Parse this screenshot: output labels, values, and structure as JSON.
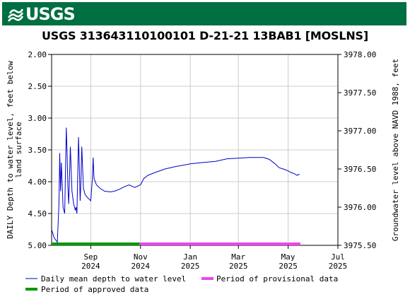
{
  "header": {
    "logo_text": "USGS",
    "banner_color": "#006f41"
  },
  "chart_data": {
    "type": "line",
    "title": "USGS 313643110100101 D-21-21 13BAB1 [MOSLNS]",
    "ylabel_left": [
      "DAILY Depth to water level, feet below",
      "land surface"
    ],
    "ylabel_right": "Groundwater level above NAVD 1988, feet",
    "y_left": {
      "min": 2.0,
      "max": 5.0,
      "inverted": true,
      "ticks": [
        "2.00",
        "2.50",
        "3.00",
        "3.50",
        "4.00",
        "4.50",
        "5.00"
      ]
    },
    "y_right": {
      "min": 3975.5,
      "max": 3978.0,
      "ticks": [
        "3978.00",
        "3977.50",
        "3977.00",
        "3976.50",
        "3976.00",
        "3975.50"
      ]
    },
    "x_range": [
      "2024-07-15",
      "2025-07-01"
    ],
    "x_ticks": [
      {
        "date": "2024-09-01",
        "month": "Sep",
        "year": "2024"
      },
      {
        "date": "2024-11-01",
        "month": "Nov",
        "year": "2024"
      },
      {
        "date": "2025-01-01",
        "month": "Jan",
        "year": "2025"
      },
      {
        "date": "2025-03-01",
        "month": "Mar",
        "year": "2025"
      },
      {
        "date": "2025-05-01",
        "month": "May",
        "year": "2025"
      },
      {
        "date": "2025-07-01",
        "month": "Jul",
        "year": "2025"
      }
    ],
    "grid": true,
    "legend_position": "bottom",
    "series": [
      {
        "name": "Daily mean depth to water level",
        "color": "#0000cc",
        "points": [
          [
            "2024-07-15",
            4.75
          ],
          [
            "2024-07-18",
            4.88
          ],
          [
            "2024-07-22",
            4.95
          ],
          [
            "2024-07-24",
            4.35
          ],
          [
            "2024-07-25",
            3.55
          ],
          [
            "2024-07-26",
            4.15
          ],
          [
            "2024-07-27",
            3.7
          ],
          [
            "2024-07-29",
            4.4
          ],
          [
            "2024-07-31",
            4.5
          ],
          [
            "2024-08-01",
            3.85
          ],
          [
            "2024-08-02",
            3.15
          ],
          [
            "2024-08-03",
            3.55
          ],
          [
            "2024-08-04",
            4.1
          ],
          [
            "2024-08-05",
            4.35
          ],
          [
            "2024-08-06",
            3.9
          ],
          [
            "2024-08-07",
            3.45
          ],
          [
            "2024-08-08",
            3.8
          ],
          [
            "2024-08-09",
            4.15
          ],
          [
            "2024-08-11",
            4.35
          ],
          [
            "2024-08-13",
            4.45
          ],
          [
            "2024-08-14",
            4.4
          ],
          [
            "2024-08-15",
            4.5
          ],
          [
            "2024-08-17",
            3.3
          ],
          [
            "2024-08-18",
            3.75
          ],
          [
            "2024-08-19",
            4.3
          ],
          [
            "2024-08-20",
            4.0
          ],
          [
            "2024-08-21",
            3.45
          ],
          [
            "2024-08-23",
            4.1
          ],
          [
            "2024-08-25",
            4.2
          ],
          [
            "2024-08-28",
            4.25
          ],
          [
            "2024-09-01",
            4.3
          ],
          [
            "2024-09-03",
            3.95
          ],
          [
            "2024-09-04",
            3.62
          ],
          [
            "2024-09-05",
            3.95
          ],
          [
            "2024-09-08",
            4.05
          ],
          [
            "2024-09-12",
            4.1
          ],
          [
            "2024-09-18",
            4.15
          ],
          [
            "2024-09-25",
            4.16
          ],
          [
            "2024-09-30",
            4.15
          ],
          [
            "2024-10-06",
            4.12
          ],
          [
            "2024-10-12",
            4.08
          ],
          [
            "2024-10-18",
            4.05
          ],
          [
            "2024-10-25",
            4.09
          ],
          [
            "2024-11-01",
            4.05
          ],
          [
            "2024-11-05",
            3.95
          ],
          [
            "2024-11-10",
            3.9
          ],
          [
            "2024-11-20",
            3.85
          ],
          [
            "2024-12-01",
            3.8
          ],
          [
            "2024-12-15",
            3.76
          ],
          [
            "2025-01-01",
            3.72
          ],
          [
            "2025-01-15",
            3.7
          ],
          [
            "2025-02-01",
            3.68
          ],
          [
            "2025-02-15",
            3.64
          ],
          [
            "2025-03-01",
            3.63
          ],
          [
            "2025-03-15",
            3.62
          ],
          [
            "2025-04-01",
            3.62
          ],
          [
            "2025-04-08",
            3.65
          ],
          [
            "2025-04-15",
            3.72
          ],
          [
            "2025-04-20",
            3.78
          ],
          [
            "2025-04-25",
            3.8
          ],
          [
            "2025-05-01",
            3.83
          ],
          [
            "2025-05-05",
            3.86
          ],
          [
            "2025-05-08",
            3.87
          ],
          [
            "2025-05-12",
            3.9
          ],
          [
            "2025-05-15",
            3.88
          ]
        ]
      }
    ],
    "periods": [
      {
        "name": "Period of approved data",
        "color": "#009900",
        "start": "2024-07-15",
        "end": "2024-10-31"
      },
      {
        "name": "Period of provisional data",
        "color": "#ee44ee",
        "start": "2024-10-31",
        "end": "2025-05-16"
      }
    ]
  }
}
